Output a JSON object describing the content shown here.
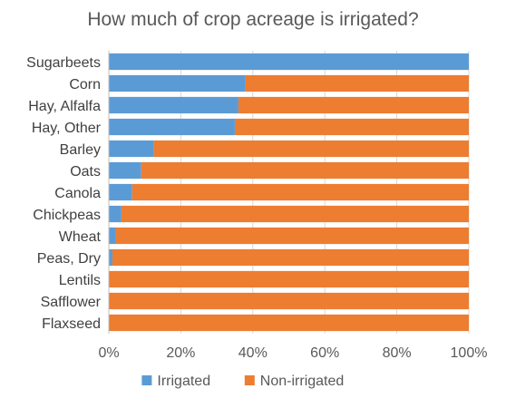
{
  "chart_data": {
    "type": "bar",
    "orientation": "horizontal",
    "stacked": true,
    "title": "How much of crop acreage is irrigated?",
    "categories": [
      "Sugarbeets",
      "Corn",
      "Hay, Alfalfa",
      "Hay, Other",
      "Barley",
      "Oats",
      "Canola",
      "Chickpeas",
      "Wheat",
      "Peas, Dry",
      "Lentils",
      "Safflower",
      "Flaxseed"
    ],
    "series": [
      {
        "name": "Irrigated",
        "color": "#5b9bd5",
        "values": [
          100,
          38,
          36,
          35,
          12.5,
          9,
          6.5,
          3.5,
          2,
          1,
          0,
          0,
          0
        ]
      },
      {
        "name": "Non-irrigated",
        "color": "#ed7d31",
        "values": [
          0,
          62,
          64,
          65,
          87.5,
          91,
          93.5,
          96.5,
          98,
          99,
          100,
          100,
          100
        ]
      }
    ],
    "xlim": [
      0,
      100
    ],
    "xticks": [
      "0%",
      "20%",
      "40%",
      "60%",
      "80%",
      "100%"
    ],
    "grid": true,
    "legend_position": "bottom"
  }
}
